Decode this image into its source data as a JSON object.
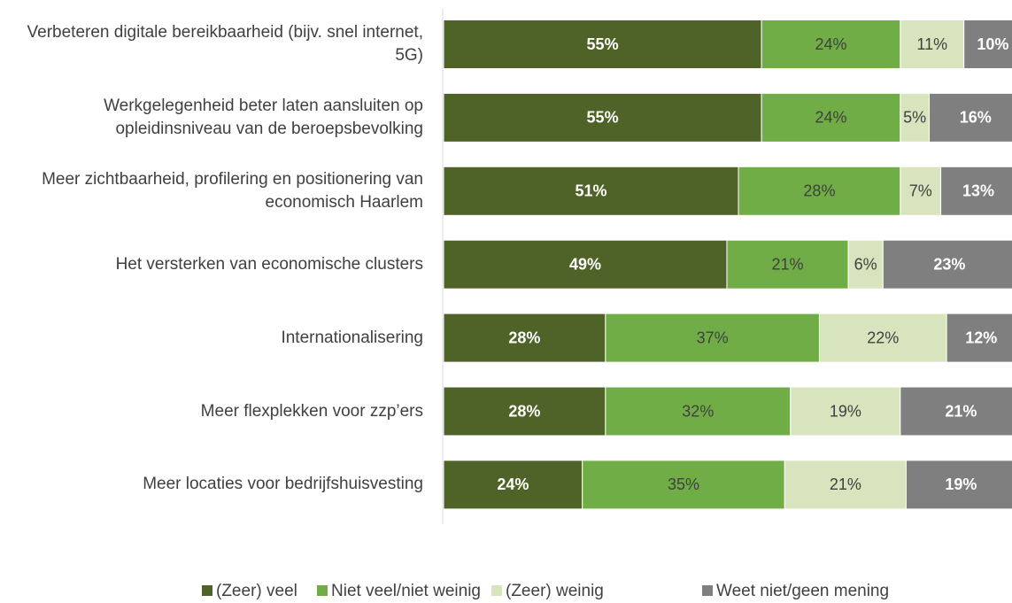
{
  "chart_data": {
    "type": "stacked_bar_horizontal",
    "categories": [
      "Verbeteren digitale bereikbaarheid (bijv. snel internet, 5G)",
      "Werkgelegenheid beter laten aansluiten op opleidinsniveau van de beroepsbevolking",
      "Meer zichtbaarheid, profilering en positionering van economisch Haarlem",
      "Het versterken van economische clusters",
      "Internationalisering",
      "Meer flexplekken voor zzp’ers",
      "Meer locaties voor bedrijfshuisvesting"
    ],
    "series": [
      {
        "name": "(Zeer) veel",
        "color": "#4f6228",
        "values": [
          55,
          55,
          51,
          49,
          28,
          28,
          24
        ],
        "value_labels": [
          "55%",
          "55%",
          "51%",
          "49%",
          "28%",
          "28%",
          "24%"
        ]
      },
      {
        "name": "Niet veel/niet weinig",
        "color": "#70ad47",
        "values": [
          24,
          24,
          28,
          21,
          37,
          32,
          35
        ],
        "value_labels": [
          "24%",
          "24%",
          "28%",
          "21%",
          "37%",
          "32%",
          "35%"
        ]
      },
      {
        "name": "(Zeer) weinig",
        "color": "#d7e4bd",
        "values": [
          11,
          5,
          7,
          6,
          22,
          19,
          21
        ],
        "value_labels": [
          "11%",
          "5%",
          "7%",
          "6%",
          "22%",
          "19%",
          "21%"
        ]
      },
      {
        "name": "Weet niet/geen mening",
        "color": "#7f7f7f",
        "values": [
          10,
          16,
          13,
          23,
          12,
          21,
          19
        ],
        "value_labels": [
          "10%",
          "16%",
          "13%",
          "23%",
          "12%",
          "21%",
          "19%"
        ]
      }
    ],
    "legend": "bottom"
  }
}
